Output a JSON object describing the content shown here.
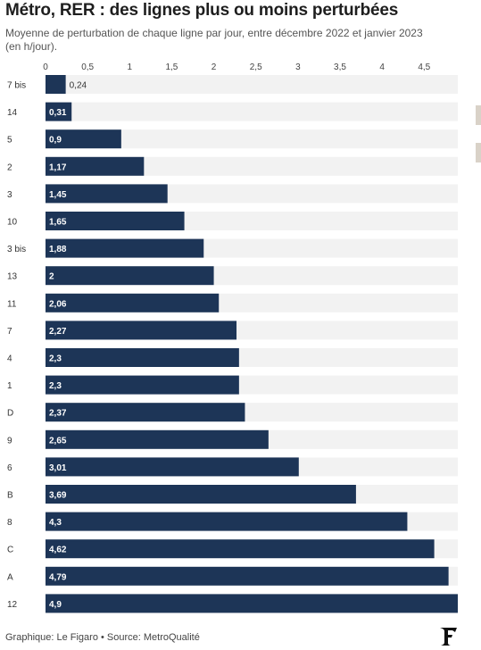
{
  "title": "Métro, RER : des lignes plus ou moins perturbées",
  "subtitle": "Moyenne de perturbation de chaque ligne par jour, entre décembre 2022 et janvier 2023 (en h/jour).",
  "footer": "Graphique: Le Figaro • Source: MetroQualité",
  "colors": {
    "bar": "#1d3557",
    "track": "#f2f2f2",
    "label_inside": "#ffffff",
    "label_outside": "#333333"
  },
  "logo_icon": "le-figaro-logo-icon",
  "chart_data": {
    "type": "bar",
    "orientation": "horizontal",
    "xlim": [
      0,
      4.9
    ],
    "ticks": [
      "0",
      "0,5",
      "1",
      "1,5",
      "2",
      "2,5",
      "3",
      "3,5",
      "4",
      "4,5"
    ],
    "tick_values": [
      0,
      0.5,
      1,
      1.5,
      2,
      2.5,
      3,
      3.5,
      4,
      4.5
    ],
    "categories": [
      "7 bis",
      "14",
      "5",
      "2",
      "3",
      "10",
      "3 bis",
      "13",
      "11",
      "7",
      "4",
      "1",
      "D",
      "9",
      "6",
      "B",
      "8",
      "C",
      "A",
      "12"
    ],
    "values": [
      0.24,
      0.31,
      0.9,
      1.17,
      1.45,
      1.65,
      1.88,
      2,
      2.06,
      2.27,
      2.3,
      2.3,
      2.37,
      2.65,
      3.01,
      3.69,
      4.3,
      4.62,
      4.79,
      4.9
    ],
    "value_labels": [
      "0,24",
      "0,31",
      "0,9",
      "1,17",
      "1,45",
      "1,65",
      "1,88",
      "2",
      "2,06",
      "2,27",
      "2,3",
      "2,3",
      "2,37",
      "2,65",
      "3,01",
      "3,69",
      "4,3",
      "4,62",
      "4,79",
      "4,9"
    ],
    "grid": true
  }
}
